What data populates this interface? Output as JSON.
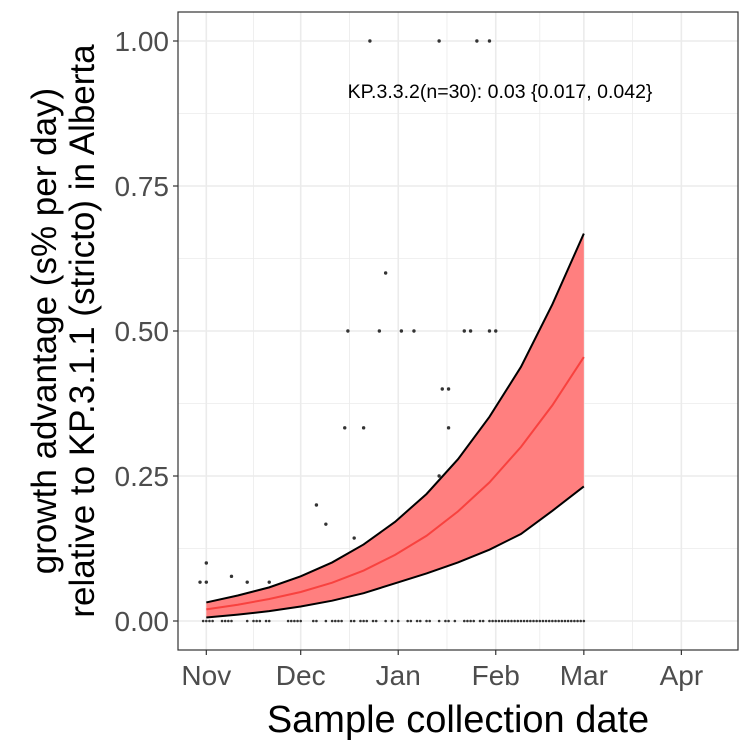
{
  "chart_data": {
    "type": "line",
    "xlabel": "Sample collection date",
    "ylabel_line1": "growth advantage (s% per day)",
    "ylabel_line2": "relative to KP.3.1.1 (stricto) in Alberta",
    "annotation": "KP.3.3.2(n=30): 0.03 {0.017, 0.042}",
    "x_ticks": [
      "Nov",
      "Dec",
      "Jan",
      "Feb",
      "Mar",
      "Apr"
    ],
    "y_ticks": [
      "0.00",
      "0.25",
      "0.50",
      "0.75",
      "1.00"
    ],
    "x_tick_days": [
      0,
      30,
      61,
      92,
      120,
      151
    ],
    "xlim_days": [
      -9,
      169
    ],
    "ylim": [
      -0.05,
      1.05
    ],
    "grid": true,
    "colors": {
      "fit_line": "#F8423F",
      "ribbon": "#FF7F7F",
      "ribbon_edge": "#000000",
      "points": "#333333"
    },
    "series": [
      {
        "x_days": [
          0,
          10,
          20,
          30,
          40,
          50,
          60,
          70,
          80,
          90,
          100,
          110,
          120
        ],
        "fit": [
          0.02,
          0.028,
          0.038,
          0.05,
          0.066,
          0.087,
          0.114,
          0.147,
          0.189,
          0.239,
          0.3,
          0.372,
          0.455
        ],
        "lower": [
          0.006,
          0.011,
          0.017,
          0.025,
          0.035,
          0.048,
          0.065,
          0.082,
          0.101,
          0.123,
          0.15,
          0.19,
          0.232
        ],
        "upper": [
          0.032,
          0.044,
          0.058,
          0.077,
          0.101,
          0.132,
          0.171,
          0.219,
          0.279,
          0.352,
          0.438,
          0.546,
          0.668
        ]
      }
    ],
    "points": {
      "x_days": [
        -2,
        0,
        0,
        8,
        13,
        20,
        35,
        38,
        44,
        45,
        47,
        50,
        52,
        55,
        57,
        62,
        66,
        74,
        86,
        90,
        74,
        75,
        77,
        77,
        82,
        84,
        90,
        92
      ],
      "y": [
        0.067,
        0.1,
        0.067,
        0.077,
        0.067,
        0.067,
        0.2,
        0.167,
        0.333,
        0.5,
        0.143,
        0.333,
        1.0,
        0.5,
        0.6,
        0.5,
        0.5,
        1.0,
        1.0,
        1.0,
        0.25,
        0.4,
        0.333,
        0.4,
        0.5,
        0.5,
        0.5,
        0.5
      ]
    },
    "zero_points": {
      "x_start_day": 0,
      "x_end_day": 120,
      "y": 0.0
    }
  }
}
